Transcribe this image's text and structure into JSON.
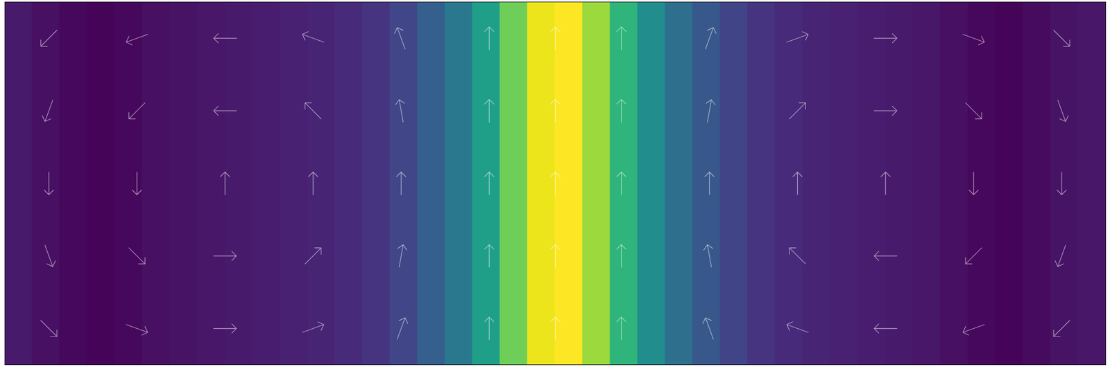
{
  "chart_data": {
    "type": "vector_field",
    "xlim": [
      0,
      1
    ],
    "ylim": [
      0,
      1
    ],
    "tick_labels": false,
    "grid": false,
    "color": "viridis",
    "clim": [
      0,
      1
    ],
    "x_bins": [
      0,
      0.025,
      0.05,
      0.075,
      0.1,
      0.125,
      0.15,
      0.175,
      0.2,
      0.225,
      0.25,
      0.275,
      0.3,
      0.325,
      0.35,
      0.375,
      0.4,
      0.425,
      0.45,
      0.475,
      0.5,
      0.525,
      0.55,
      0.575,
      0.6,
      0.625,
      0.65,
      0.675,
      0.7,
      0.725,
      0.75,
      0.775,
      0.8,
      0.825,
      0.85,
      0.875,
      0.9,
      0.925,
      0.95,
      0.975,
      1
    ],
    "magnitude": [
      0.07,
      0.04,
      0.02,
      0.01,
      0.02,
      0.04,
      0.05,
      0.06,
      0.07,
      0.08,
      0.09,
      0.1,
      0.12,
      0.15,
      0.21,
      0.3,
      0.4,
      0.56,
      0.78,
      0.97,
      1.0,
      0.85,
      0.65,
      0.49,
      0.36,
      0.27,
      0.2,
      0.15,
      0.12,
      0.1,
      0.09,
      0.08,
      0.07,
      0.06,
      0.04,
      0.02,
      0.01,
      0.03,
      0.05,
      0.06
    ],
    "vectors": {
      "x": [
        0.04,
        0.12,
        0.2,
        0.28,
        0.36,
        0.44,
        0.5,
        0.56,
        0.64,
        0.72,
        0.8,
        0.88,
        0.96
      ],
      "y": [
        0.9,
        0.7,
        0.5,
        0.3,
        0.1
      ],
      "angles": [
        [
          225,
          250,
          270,
          290,
          340,
          0,
          0,
          0,
          20,
          70,
          90,
          110,
          135
        ],
        [
          200,
          225,
          270,
          315,
          350,
          0,
          0,
          0,
          10,
          45,
          90,
          135,
          160
        ],
        [
          180,
          180,
          0,
          0,
          0,
          0,
          0,
          0,
          0,
          0,
          0,
          180,
          180
        ],
        [
          160,
          135,
          90,
          45,
          10,
          0,
          0,
          0,
          350,
          315,
          270,
          225,
          200
        ],
        [
          135,
          110,
          90,
          70,
          20,
          0,
          0,
          0,
          340,
          290,
          270,
          250,
          225
        ]
      ]
    }
  }
}
